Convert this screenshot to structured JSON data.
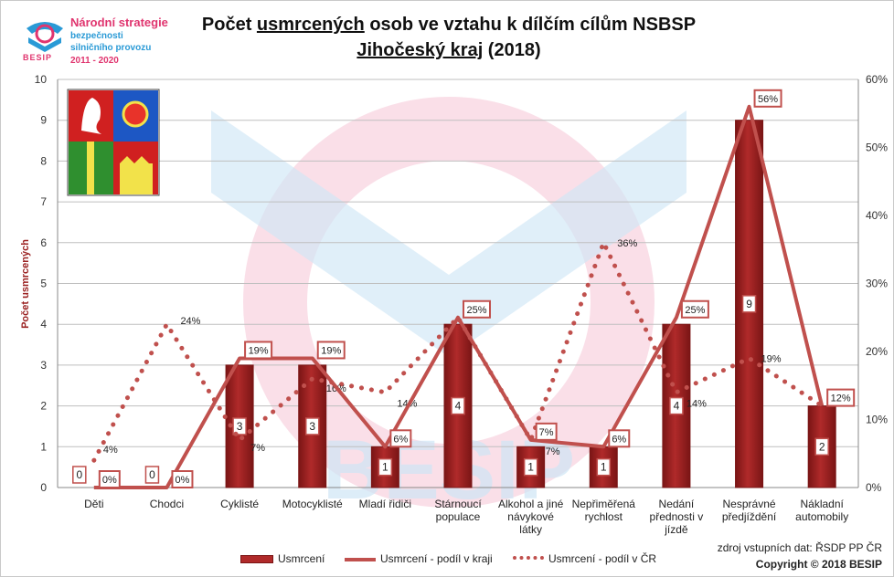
{
  "logo": {
    "line1": "Národní strategie",
    "line2": "bezpečnosti",
    "line3": "silničního provozu",
    "years": "2011 - 2020",
    "brand": "BESIP"
  },
  "title": {
    "part1": "Počet ",
    "underlined": "usmrcených",
    "part2": " osob ve vztahu k dílčím cílům NSBSP",
    "region": "Jihočeský kraj",
    "year": " (2018)"
  },
  "watermark": "BESIP",
  "colors": {
    "bar": "#b02a2a",
    "bar_dark": "#7a1515",
    "line": "#c0504d",
    "grid": "#bfbfbf",
    "axis_text": "#333333",
    "logo_pink": "#e0356f",
    "logo_blue": "#2a9ad6"
  },
  "chart_data": {
    "type": "bar",
    "title": "Počet usmrcených osob ve vztahu k dílčím cílům NSBSP – Jihočeský kraj (2018)",
    "ylabel": "Počet usmrcených",
    "ylim": [
      0,
      10
    ],
    "y2lim": [
      0,
      60
    ],
    "yticks": [
      "0",
      "1",
      "2",
      "3",
      "4",
      "5",
      "6",
      "7",
      "8",
      "9",
      "10"
    ],
    "y2ticks": [
      "0%",
      "10%",
      "20%",
      "30%",
      "40%",
      "50%",
      "60%"
    ],
    "categories": [
      [
        "Děti"
      ],
      [
        "Chodci"
      ],
      [
        "Cyklisté"
      ],
      [
        "Motocyklisté"
      ],
      [
        "Mladí řidiči"
      ],
      [
        "Stárnoucí",
        "populace"
      ],
      [
        "Alkohol a jiné",
        "návykové",
        "látky"
      ],
      [
        "Nepřiměřená",
        "rychlost"
      ],
      [
        "Nedání",
        "přednosti v",
        "jízdě"
      ],
      [
        "Nesprávné",
        "předjíždění"
      ],
      [
        "Nákladní",
        "automobily"
      ]
    ],
    "series": [
      {
        "name": "Usmrcení",
        "kind": "bar",
        "axis": "left",
        "values": [
          0,
          0,
          3,
          3,
          1,
          4,
          1,
          1,
          4,
          9,
          2
        ],
        "labels": [
          "0",
          "0",
          "3",
          "3",
          "1",
          "4",
          "1",
          "1",
          "4",
          "9",
          "2"
        ]
      },
      {
        "name": "Usmrcení - podíl v kraji",
        "kind": "line",
        "axis": "right",
        "values": [
          0,
          0,
          19,
          19,
          6,
          25,
          7,
          6,
          25,
          56,
          12
        ],
        "labels": [
          "0%",
          "0%",
          "19%",
          "19%",
          "6%",
          "25%",
          "7%",
          "6%",
          "25%",
          "56%",
          "12%"
        ]
      },
      {
        "name": "Usmrcení - podíl v ČR",
        "kind": "dotted-line",
        "axis": "right",
        "values": [
          4,
          24,
          7,
          16,
          14,
          25,
          7,
          36,
          14,
          19,
          12
        ],
        "labels": [
          "4%",
          "24%",
          "7%",
          "16%",
          "14%",
          "25%",
          "7%",
          "36%",
          "14%",
          "19%",
          "12%"
        ]
      }
    ]
  },
  "legend": {
    "bar": "Usmrcení",
    "line": "Usmrcení - podíl v kraji",
    "dotted": "Usmrcení - podíl v ČR"
  },
  "source": {
    "text": "zdroj vstupních dat: ŘSDP PP ČR",
    "copyright": "Copyright © 2018  BESIP"
  }
}
